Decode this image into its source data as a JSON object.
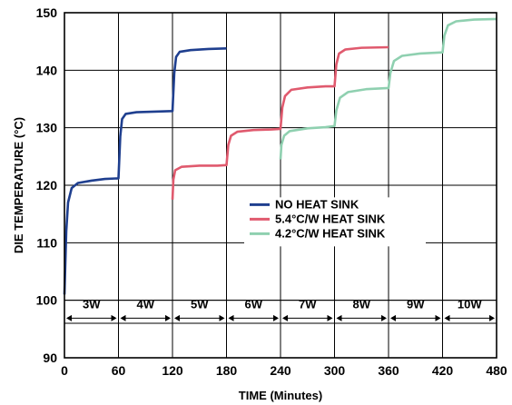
{
  "chart_data": {
    "type": "line",
    "title": "",
    "xlabel": "TIME (Minutes)",
    "ylabel": "DIE TEMPERATURE (°C)",
    "xlim": [
      0,
      480
    ],
    "ylim": [
      90,
      150
    ],
    "x_ticks": [
      0,
      60,
      120,
      180,
      240,
      300,
      360,
      420,
      480
    ],
    "y_ticks": [
      90,
      100,
      110,
      120,
      130,
      140,
      150
    ],
    "grid": true,
    "legend_position": "center-right",
    "power_steps": [
      {
        "label": "3W",
        "start": 0,
        "end": 60
      },
      {
        "label": "4W",
        "start": 60,
        "end": 120
      },
      {
        "label": "5W",
        "start": 120,
        "end": 180
      },
      {
        "label": "6W",
        "start": 180,
        "end": 240
      },
      {
        "label": "7W",
        "start": 240,
        "end": 300
      },
      {
        "label": "8W",
        "start": 300,
        "end": 360
      },
      {
        "label": "9W",
        "start": 360,
        "end": 420
      },
      {
        "label": "10W",
        "start": 420,
        "end": 480
      }
    ],
    "series": [
      {
        "name": "NO HEAT SINK",
        "color": "#1f3f8f",
        "points": [
          [
            0,
            101
          ],
          [
            2,
            112
          ],
          [
            4,
            117
          ],
          [
            8,
            119.5
          ],
          [
            15,
            120.4
          ],
          [
            30,
            120.8
          ],
          [
            45,
            121.1
          ],
          [
            60,
            121.2
          ],
          [
            60,
            121.2
          ],
          [
            62,
            128.5
          ],
          [
            64,
            131.5
          ],
          [
            68,
            132.4
          ],
          [
            80,
            132.7
          ],
          [
            100,
            132.8
          ],
          [
            120,
            132.9
          ],
          [
            120,
            132.9
          ],
          [
            122,
            139.5
          ],
          [
            124,
            142.3
          ],
          [
            128,
            143.2
          ],
          [
            140,
            143.5
          ],
          [
            160,
            143.7
          ],
          [
            180,
            143.8
          ]
        ]
      },
      {
        "name": "5.4°C/W HEAT SINK",
        "color": "#e05a6e",
        "points": [
          [
            120,
            117.5
          ],
          [
            121,
            121
          ],
          [
            123,
            122.6
          ],
          [
            130,
            123.2
          ],
          [
            150,
            123.4
          ],
          [
            170,
            123.4
          ],
          [
            180,
            123.5
          ],
          [
            180,
            123.5
          ],
          [
            182,
            127
          ],
          [
            185,
            128.6
          ],
          [
            192,
            129.3
          ],
          [
            210,
            129.6
          ],
          [
            230,
            129.7
          ],
          [
            240,
            129.8
          ],
          [
            240,
            129.8
          ],
          [
            242,
            133.5
          ],
          [
            245,
            135.5
          ],
          [
            252,
            136.6
          ],
          [
            270,
            137
          ],
          [
            290,
            137.2
          ],
          [
            300,
            137.2
          ],
          [
            300,
            137.2
          ],
          [
            302,
            141
          ],
          [
            305,
            142.9
          ],
          [
            312,
            143.6
          ],
          [
            330,
            143.9
          ],
          [
            360,
            144
          ]
        ]
      },
      {
        "name": "4.2°C/W HEAT SINK",
        "color": "#8fd0b0",
        "points": [
          [
            240,
            124.5
          ],
          [
            241,
            127
          ],
          [
            244,
            128.6
          ],
          [
            250,
            129.4
          ],
          [
            270,
            129.9
          ],
          [
            290,
            130.1
          ],
          [
            300,
            130.3
          ],
          [
            300,
            130.3
          ],
          [
            302,
            133
          ],
          [
            306,
            135.2
          ],
          [
            315,
            136.2
          ],
          [
            335,
            136.7
          ],
          [
            360,
            136.9
          ],
          [
            360,
            136.9
          ],
          [
            362,
            139.5
          ],
          [
            366,
            141.6
          ],
          [
            375,
            142.5
          ],
          [
            395,
            142.9
          ],
          [
            420,
            143.1
          ],
          [
            420,
            143.1
          ],
          [
            422,
            146
          ],
          [
            426,
            147.8
          ],
          [
            435,
            148.5
          ],
          [
            455,
            148.8
          ],
          [
            480,
            148.9
          ]
        ]
      }
    ]
  }
}
